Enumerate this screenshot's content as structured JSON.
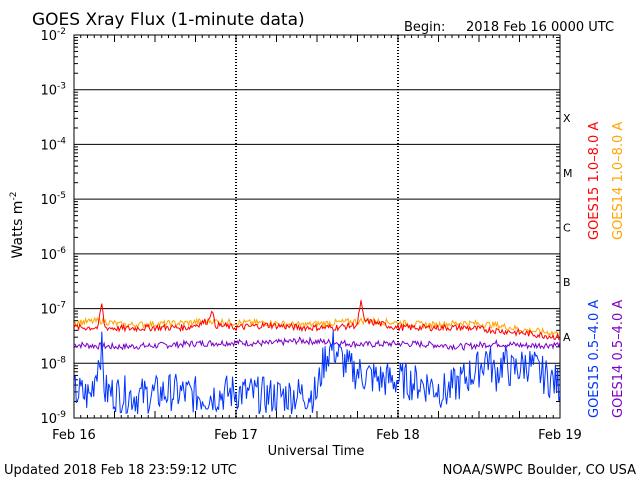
{
  "chart_data": {
    "type": "line",
    "title": "GOES Xray Flux (1-minute data)",
    "begin_label": "Begin:",
    "begin_value": "2018 Feb 16 0000 UTC",
    "xlabel": "Universal Time",
    "ylabel": "Watts m",
    "ylabel_sup": "-2",
    "x_range_days": [
      0,
      3
    ],
    "x_ticks": [
      {
        "day": 0,
        "label": "Feb 16"
      },
      {
        "day": 1,
        "label": "Feb 17"
      },
      {
        "day": 2,
        "label": "Feb 18"
      },
      {
        "day": 3,
        "label": "Feb 19"
      }
    ],
    "y_scale": "log",
    "ylim": [
      1e-09,
      0.01
    ],
    "y_ticks": [
      {
        "exp": -9,
        "label": "10",
        "sup": "-9"
      },
      {
        "exp": -8,
        "label": "10",
        "sup": "-8"
      },
      {
        "exp": -7,
        "label": "10",
        "sup": "-7"
      },
      {
        "exp": -6,
        "label": "10",
        "sup": "-6"
      },
      {
        "exp": -5,
        "label": "10",
        "sup": "-5"
      },
      {
        "exp": -4,
        "label": "10",
        "sup": "-4"
      },
      {
        "exp": -3,
        "label": "10",
        "sup": "-3"
      },
      {
        "exp": -2,
        "label": "10",
        "sup": "-2"
      }
    ],
    "flare_classes": [
      {
        "label": "A",
        "exp": -8
      },
      {
        "label": "B",
        "exp": -7
      },
      {
        "label": "C",
        "exp": -6
      },
      {
        "label": "M",
        "exp": -5
      },
      {
        "label": "X",
        "exp": -4
      }
    ],
    "data_end_day": 2.9999,
    "series": [
      {
        "name": "GOES14 0.5-4.0 A",
        "color": "#7a00c8",
        "points": [
          [
            0,
            2.2e-08
          ],
          [
            0.25,
            2e-08
          ],
          [
            0.5,
            2.1e-08
          ],
          [
            0.75,
            2.3e-08
          ],
          [
            1.0,
            2.4e-08
          ],
          [
            1.2,
            2.3e-08
          ],
          [
            1.4,
            2.6e-08
          ],
          [
            1.6,
            2.4e-08
          ],
          [
            1.8,
            2.2e-08
          ],
          [
            2.0,
            2.3e-08
          ],
          [
            2.2,
            2.2e-08
          ],
          [
            2.4,
            2e-08
          ],
          [
            2.6,
            2.3e-08
          ],
          [
            2.8,
            2.1e-08
          ],
          [
            3.0,
            2.2e-08
          ]
        ]
      },
      {
        "name": "GOES15 0.5-4.0 A",
        "color": "#0033ff",
        "points": [
          [
            0,
            3e-09
          ],
          [
            0.1,
            2.5e-09
          ],
          [
            0.17,
            2e-08
          ],
          [
            0.19,
            3e-09
          ],
          [
            0.4,
            2.5e-09
          ],
          [
            0.6,
            3e-09
          ],
          [
            0.8,
            2.5e-09
          ],
          [
            1.0,
            3e-09
          ],
          [
            1.2,
            2.5e-09
          ],
          [
            1.5,
            2.8e-09
          ],
          [
            1.53,
            8e-09
          ],
          [
            1.56,
            1.5e-08
          ],
          [
            1.6,
            2e-08
          ],
          [
            1.65,
            1.2e-08
          ],
          [
            1.7,
            8e-09
          ],
          [
            1.8,
            6e-09
          ],
          [
            1.9,
            5e-09
          ],
          [
            2.0,
            5e-09
          ],
          [
            2.2,
            4e-09
          ],
          [
            2.3,
            3e-09
          ],
          [
            2.4,
            5e-09
          ],
          [
            2.5,
            8e-09
          ],
          [
            2.55,
            1.4e-08
          ],
          [
            2.6,
            6e-09
          ],
          [
            2.65,
            1.1e-08
          ],
          [
            2.7,
            7e-09
          ],
          [
            2.8,
            1e-08
          ],
          [
            2.9,
            6e-09
          ],
          [
            3.0,
            4e-09
          ]
        ]
      },
      {
        "name": "GOES14 1.0-8.0 A",
        "color": "#ffa500",
        "points": [
          [
            0,
            5.5e-08
          ],
          [
            0.17,
            6e-08
          ],
          [
            0.3,
            5e-08
          ],
          [
            0.5,
            5.2e-08
          ],
          [
            0.7,
            5.5e-08
          ],
          [
            0.85,
            6e-08
          ],
          [
            1.0,
            5.5e-08
          ],
          [
            1.2,
            5.5e-08
          ],
          [
            1.4,
            5e-08
          ],
          [
            1.6,
            5.5e-08
          ],
          [
            1.8,
            6e-08
          ],
          [
            2.0,
            5.5e-08
          ],
          [
            2.2,
            5e-08
          ],
          [
            2.4,
            5.5e-08
          ],
          [
            2.6,
            5e-08
          ],
          [
            2.8,
            4e-08
          ],
          [
            3.0,
            3.5e-08
          ]
        ]
      },
      {
        "name": "GOES15 1.0-8.0 A",
        "color": "#ff0000",
        "points": [
          [
            0,
            4.5e-08
          ],
          [
            0.15,
            4.5e-08
          ],
          [
            0.17,
            1.3e-07
          ],
          [
            0.19,
            4.5e-08
          ],
          [
            0.3,
            4.3e-08
          ],
          [
            0.5,
            4.5e-08
          ],
          [
            0.7,
            4.5e-08
          ],
          [
            0.83,
            6e-08
          ],
          [
            0.85,
            1e-07
          ],
          [
            0.87,
            5e-08
          ],
          [
            1.0,
            4.5e-08
          ],
          [
            1.2,
            5e-08
          ],
          [
            1.4,
            4.5e-08
          ],
          [
            1.6,
            4.5e-08
          ],
          [
            1.75,
            5e-08
          ],
          [
            1.77,
            1.4e-07
          ],
          [
            1.79,
            6e-08
          ],
          [
            2.0,
            4.5e-08
          ],
          [
            2.2,
            4.5e-08
          ],
          [
            2.4,
            4.5e-08
          ],
          [
            2.6,
            4e-08
          ],
          [
            2.8,
            3.5e-08
          ],
          [
            3.0,
            3e-08
          ]
        ]
      }
    ],
    "legend_right": [
      {
        "label": "GOES15 1.0–8.0 A",
        "color": "#ff0000"
      },
      {
        "label": "GOES14 1.0–8.0 A",
        "color": "#ffa500"
      },
      {
        "label": "GOES15 0.5–4.0 A",
        "color": "#0033ff"
      },
      {
        "label": "GOES14 0.5–4.0 A",
        "color": "#7a00c8"
      }
    ]
  },
  "footer": {
    "updated": "Updated 2018 Feb 18 23:59:12 UTC",
    "credit": "NOAA/SWPC Boulder, CO USA"
  }
}
